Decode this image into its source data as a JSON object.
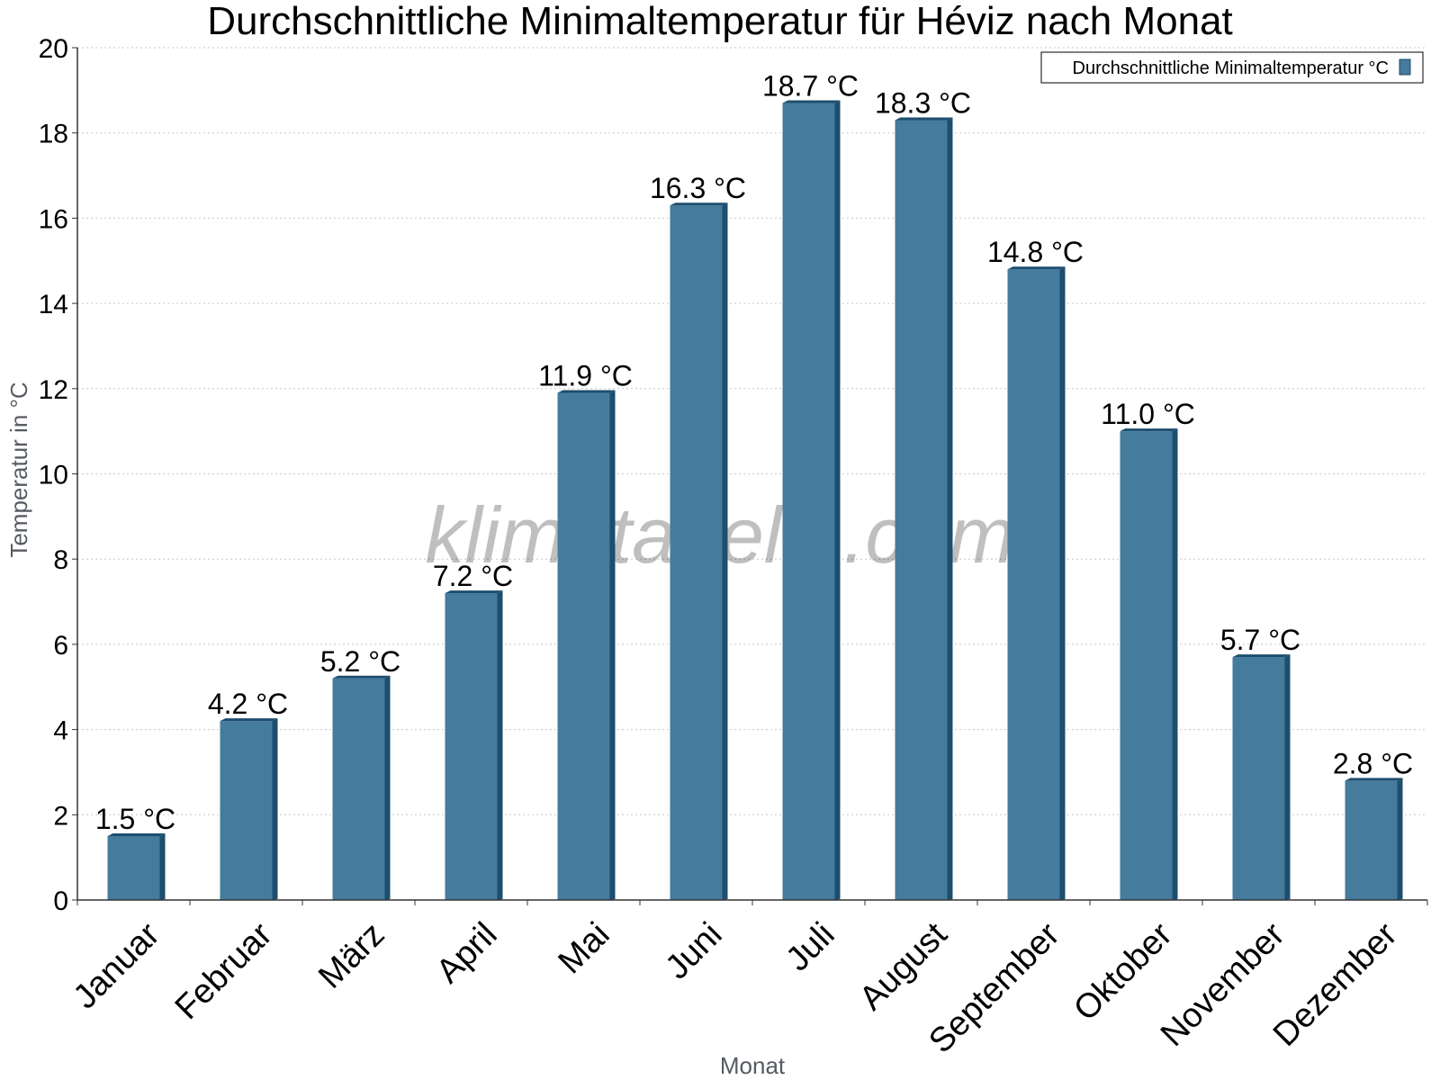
{
  "chart_data": {
    "type": "bar",
    "title": "Durchschnittliche Minimaltemperatur für Héviz nach Monat",
    "xlabel": "Monat",
    "ylabel": "Temperatur in °C",
    "ylim": [
      0,
      20
    ],
    "yticks": [
      0,
      2,
      4,
      6,
      8,
      10,
      12,
      14,
      16,
      18,
      20
    ],
    "grid": true,
    "categories": [
      "Januar",
      "Februar",
      "März",
      "April",
      "Mai",
      "Juni",
      "Juli",
      "August",
      "September",
      "Oktober",
      "November",
      "Dezember"
    ],
    "series": [
      {
        "name": "Durchschnittliche Minimaltemperatur °C",
        "values": [
          1.5,
          4.2,
          5.2,
          7.2,
          11.9,
          16.3,
          18.7,
          18.3,
          14.8,
          11.0,
          5.7,
          2.8
        ],
        "labels": [
          "1.5 °C",
          "4.2 °C",
          "5.2 °C",
          "7.2 °C",
          "11.9 °C",
          "16.3 °C",
          "18.7 °C",
          "18.3 °C",
          "14.8 °C",
          "11.0 °C",
          "5.7 °C",
          "2.8 °C"
        ]
      }
    ],
    "legend": {
      "position": "top-right",
      "label": "Durchschnittliche Minimaltemperatur °C"
    },
    "colors": {
      "bar": "#457b9d",
      "bar_dark": "#1d4e6e",
      "grid": "#c8c8c8",
      "axis": "#333333"
    }
  },
  "watermark": "klimatabelle.com"
}
